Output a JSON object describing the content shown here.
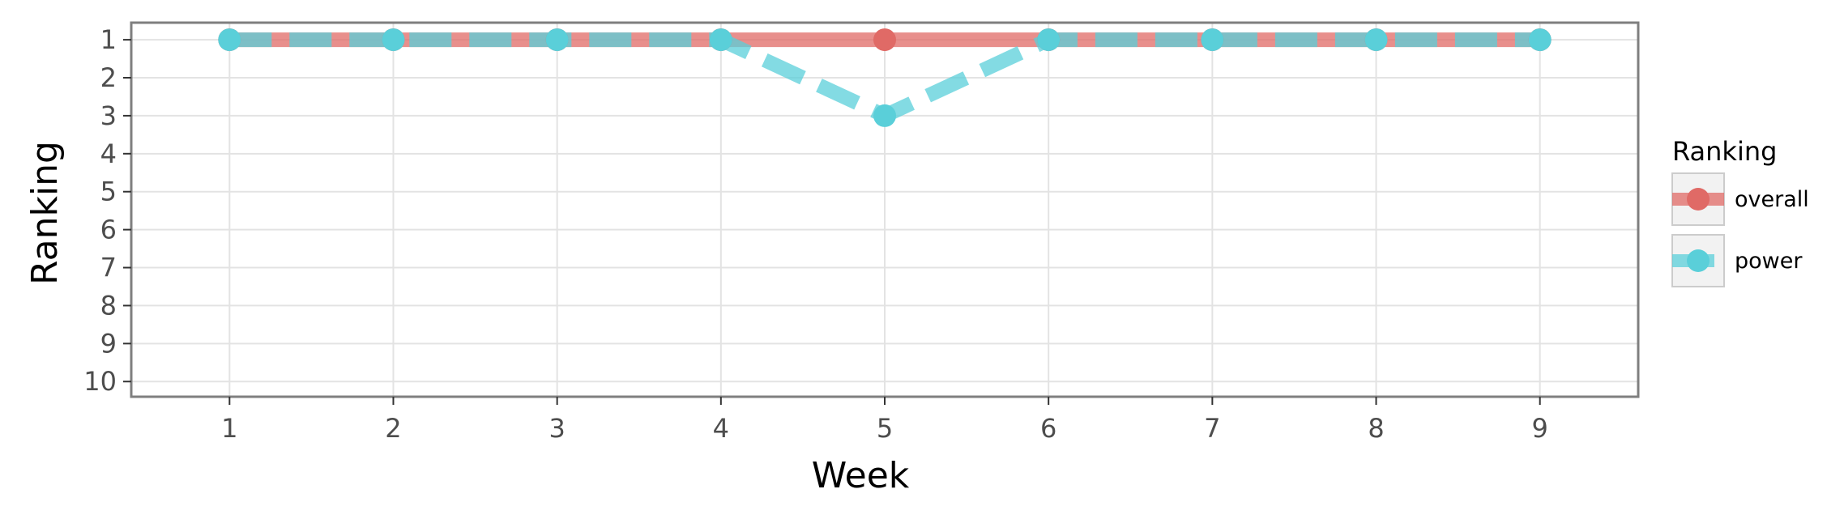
{
  "chart_data": {
    "type": "line",
    "xlabel": "Week",
    "ylabel": "Ranking",
    "x": [
      1,
      2,
      3,
      4,
      5,
      6,
      7,
      8,
      9
    ],
    "xlim": [
      0.4,
      9.6
    ],
    "ylim": [
      10.4,
      0.55
    ],
    "y_reversed": true,
    "x_ticks": [
      "1",
      "2",
      "3",
      "4",
      "5",
      "6",
      "7",
      "8",
      "9"
    ],
    "y_ticks": [
      "1",
      "2",
      "3",
      "4",
      "5",
      "6",
      "7",
      "8",
      "9",
      "10"
    ],
    "grid": true,
    "legend": {
      "title": "Ranking",
      "position": "right"
    },
    "series": [
      {
        "name": "overall",
        "values": [
          1,
          1,
          1,
          1,
          1,
          1,
          1,
          1,
          1
        ],
        "color": "#E06A66",
        "line_style": "solid"
      },
      {
        "name": "power",
        "values": [
          1,
          1,
          1,
          1,
          3,
          1,
          1,
          1,
          1
        ],
        "color": "#5ACFD9",
        "line_style": "dashed"
      }
    ]
  }
}
